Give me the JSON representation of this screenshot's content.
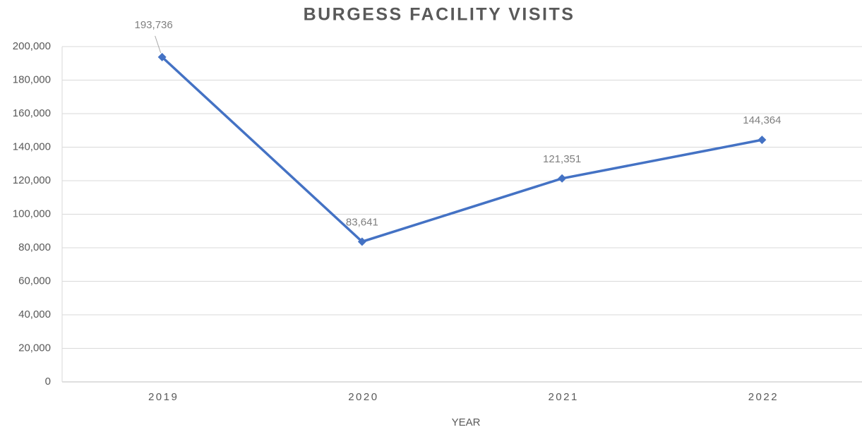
{
  "chart_data": {
    "type": "line",
    "title": "BURGESS FACILITY VISITS",
    "x_label": "YEAR",
    "categories": [
      "2019",
      "2020",
      "2021",
      "2022"
    ],
    "series": [
      {
        "name": "Visits",
        "color": "#4472c4",
        "values": [
          193736,
          83641,
          121351,
          144364
        ],
        "value_labels": [
          "193,736",
          "83,641",
          "121,351",
          "144,364"
        ]
      }
    ],
    "ylim": [
      0,
      200000
    ],
    "yticks": [
      0,
      {
        "value": 20000,
        "label": "20,000"
      },
      {
        "value": 40000,
        "label": "40,000"
      },
      {
        "value": 60000,
        "label": "60,000"
      },
      {
        "value": 80000,
        "label": "80,000"
      },
      {
        "value": 100000,
        "label": "100,000"
      },
      {
        "value": 120000,
        "label": "120,000"
      },
      {
        "value": 140000,
        "label": "140,000"
      },
      {
        "value": 160000,
        "label": "160,000"
      },
      {
        "value": 180000,
        "label": "180,000"
      },
      {
        "value": 200000,
        "label": "200,000"
      }
    ],
    "grid": true
  }
}
